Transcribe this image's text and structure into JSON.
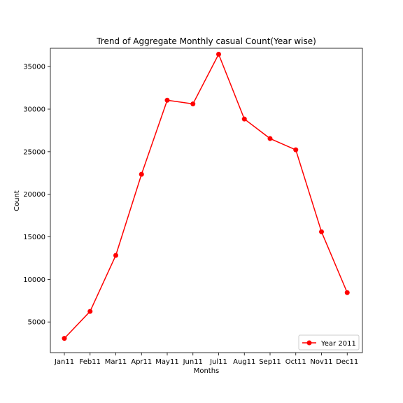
{
  "chart_data": {
    "type": "line",
    "title": "Trend of Aggregate Monthly casual Count(Year wise)",
    "xlabel": "Months",
    "ylabel": "Count",
    "categories": [
      "Jan11",
      "Feb11",
      "Mar11",
      "Apr11",
      "May11",
      "Jun11",
      "Jul11",
      "Aug11",
      "Sep11",
      "Oct11",
      "Nov11",
      "Dec11"
    ],
    "series": [
      {
        "name": "Year 2011",
        "color": "#ff0000",
        "values": [
          3073,
          6242,
          12826,
          22346,
          31050,
          30612,
          36452,
          28842,
          26545,
          25222,
          15594,
          8448
        ]
      }
    ],
    "yticks": [
      5000,
      10000,
      15000,
      20000,
      25000,
      30000,
      35000
    ],
    "ylim": [
      1400,
      37150
    ],
    "grid": false,
    "legend_position": "lower-right"
  }
}
